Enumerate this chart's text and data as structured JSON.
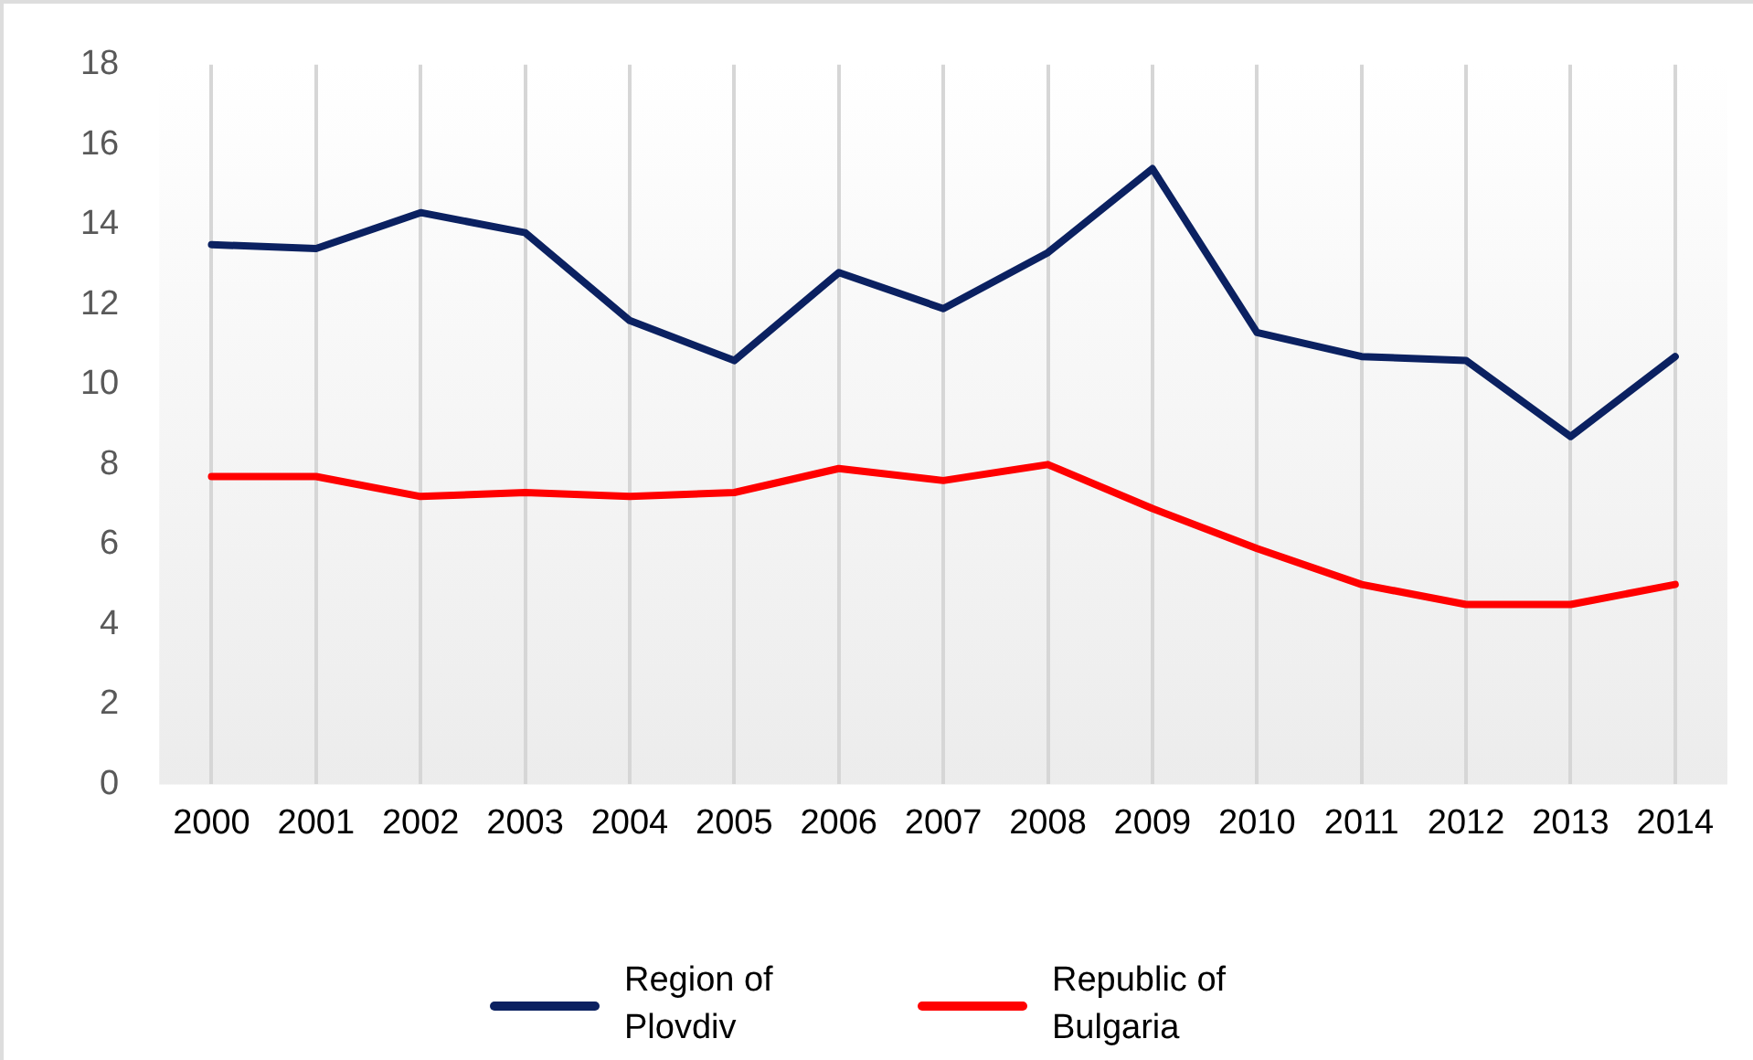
{
  "chart_data": {
    "type": "line",
    "categories": [
      "2000",
      "2001",
      "2002",
      "2003",
      "2004",
      "2005",
      "2006",
      "2007",
      "2008",
      "2009",
      "2010",
      "2011",
      "2012",
      "2013",
      "2014"
    ],
    "series": [
      {
        "name": "Region of Plovdiv",
        "color": "#0b2161",
        "values": [
          13.5,
          13.4,
          14.3,
          13.8,
          11.6,
          10.6,
          12.8,
          11.9,
          13.3,
          15.4,
          11.3,
          10.7,
          10.6,
          8.7,
          10.7
        ]
      },
      {
        "name": "Republic of Bulgaria",
        "color": "#ff0000",
        "values": [
          7.7,
          7.7,
          7.2,
          7.3,
          7.2,
          7.3,
          7.9,
          7.6,
          8.0,
          6.9,
          5.9,
          5.0,
          4.5,
          4.5,
          5.0
        ]
      }
    ],
    "ylim": [
      0,
      18
    ],
    "yticks": [
      0,
      2,
      4,
      6,
      8,
      10,
      12,
      14,
      16,
      18
    ],
    "grid": "x",
    "legend": "bottom",
    "marker": "none",
    "line_style": "solid"
  }
}
